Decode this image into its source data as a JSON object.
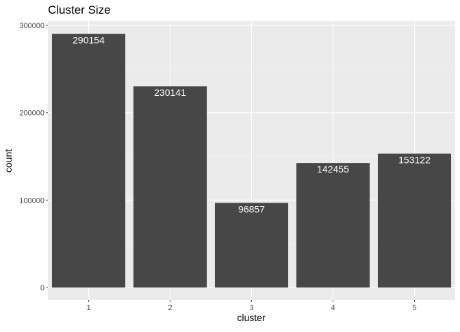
{
  "chart_data": {
    "type": "bar",
    "title": "Cluster Size",
    "xlabel": "cluster",
    "ylabel": "count",
    "categories": [
      "1",
      "2",
      "3",
      "4",
      "5"
    ],
    "values": [
      290154,
      230141,
      96857,
      142455,
      153122
    ],
    "data_labels": [
      "290154",
      "230141",
      "96857",
      "142455",
      "153122"
    ],
    "yticks": [
      0,
      100000,
      200000,
      300000
    ],
    "ytick_labels": [
      "0",
      "100000",
      "200000",
      "300000"
    ],
    "ylim": [
      0,
      300000
    ],
    "grid": true,
    "legend": "none"
  },
  "style": {
    "panel_background": "#ebebeb",
    "grid_major": "#ffffff",
    "grid_minor": "#f5f5f5",
    "bar_fill": "#474747",
    "data_label_color": "#ffffff",
    "tick_color": "#4d4d4d",
    "text_color": "#000000"
  }
}
